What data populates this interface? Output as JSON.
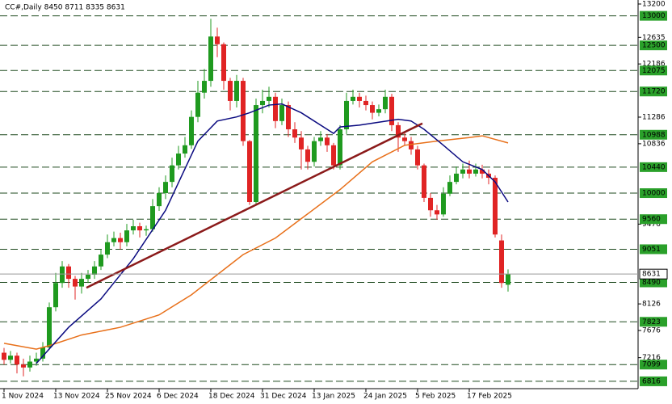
{
  "chart_data": {
    "type": "candlestick",
    "title": "CC#,Daily  8450 8711 8335 8631",
    "categories": [
      "1 Nov 2024",
      null,
      null,
      null,
      null,
      null,
      null,
      null,
      "13 Nov 2024",
      null,
      null,
      null,
      null,
      null,
      null,
      null,
      "25 Nov 2024",
      null,
      null,
      null,
      null,
      null,
      null,
      null,
      "6 Dec 2024",
      null,
      null,
      null,
      null,
      null,
      null,
      null,
      "18 Dec 2024",
      null,
      null,
      null,
      null,
      null,
      null,
      null,
      "31 Dec 2024",
      null,
      null,
      null,
      null,
      null,
      null,
      null,
      "13 Jan 2025",
      null,
      null,
      null,
      null,
      null,
      null,
      null,
      "24 Jan 2025",
      null,
      null,
      null,
      null,
      null,
      null,
      null,
      "5 Feb 2025",
      null,
      null,
      null,
      null,
      null,
      null,
      null,
      "17 Feb 2025",
      null,
      null,
      null,
      null,
      null,
      null
    ],
    "open": [
      7300,
      7180,
      7250,
      7100,
      7050,
      7150,
      7200,
      7390,
      8070,
      8480,
      8760,
      8550,
      8420,
      8550,
      8620,
      8760,
      8960,
      9170,
      9240,
      9170,
      9370,
      9440,
      9370,
      9390,
      9780,
      10000,
      10190,
      10470,
      10670,
      10810,
      11290,
      11700,
      11900,
      12650,
      12520,
      11900,
      11560,
      11900,
      10880,
      9850,
      11490,
      11560,
      11630,
      11220,
      11490,
      11080,
      10940,
      10740,
      10530,
      10880,
      10940,
      10810,
      10470,
      11080,
      11560,
      11630,
      11560,
      11490,
      11360,
      11420,
      11630,
      11150,
      10940,
      10880,
      10740,
      10470,
      9920,
      9710,
      9640,
      9990,
      10190,
      10330,
      10400,
      10330,
      10400,
      10330,
      10260,
      9200,
      8450
    ],
    "high": [
      7380,
      7330,
      7300,
      7200,
      7250,
      7300,
      7480,
      8150,
      8650,
      8850,
      8800,
      8600,
      8650,
      8700,
      8850,
      9050,
      9300,
      9350,
      9330,
      9480,
      9550,
      9500,
      9450,
      9900,
      10100,
      10300,
      10600,
      10800,
      10950,
      11400,
      11900,
      12100,
      12950,
      12800,
      12550,
      11950,
      12000,
      11950,
      10900,
      11600,
      11750,
      11800,
      11700,
      11600,
      11550,
      11200,
      11050,
      10800,
      10950,
      11050,
      11000,
      10850,
      11150,
      11700,
      11750,
      11700,
      11650,
      11550,
      11500,
      11750,
      11680,
      11200,
      11050,
      10950,
      10800,
      10500,
      10000,
      9800,
      10100,
      10300,
      10450,
      10500,
      10550,
      10500,
      10480,
      10400,
      10300,
      9300,
      8711
    ],
    "low": [
      7100,
      7120,
      6950,
      6900,
      6980,
      7080,
      7150,
      7350,
      8000,
      8400,
      8400,
      8200,
      8300,
      8480,
      8550,
      8700,
      8900,
      9100,
      9050,
      9100,
      9300,
      9250,
      9280,
      9350,
      9700,
      9900,
      10100,
      10400,
      10600,
      10750,
      11200,
      11600,
      11800,
      12300,
      11750,
      11400,
      11450,
      10800,
      9800,
      9800,
      11350,
      11450,
      11100,
      11150,
      10950,
      10850,
      10400,
      10400,
      10450,
      10800,
      10700,
      10400,
      10400,
      11000,
      11500,
      11450,
      11400,
      11250,
      11300,
      11350,
      11050,
      10700,
      10800,
      10650,
      10400,
      9850,
      9600,
      9550,
      9600,
      9950,
      10150,
      10250,
      10250,
      10280,
      10250,
      10150,
      9250,
      8400,
      8335
    ],
    "close": [
      7180,
      7250,
      7100,
      7050,
      7150,
      7200,
      7390,
      8070,
      8480,
      8760,
      8550,
      8420,
      8550,
      8620,
      8760,
      8960,
      9170,
      9240,
      9170,
      9370,
      9440,
      9370,
      9390,
      9780,
      10000,
      10190,
      10470,
      10670,
      10810,
      11290,
      11700,
      11900,
      12650,
      12520,
      11900,
      11560,
      11900,
      10880,
      9850,
      11490,
      11560,
      11630,
      11220,
      11490,
      11080,
      10940,
      10740,
      10530,
      10880,
      10940,
      10810,
      10470,
      11080,
      11560,
      11630,
      11560,
      11490,
      11360,
      11420,
      11630,
      11150,
      10940,
      10880,
      10740,
      10470,
      9920,
      9710,
      9640,
      9990,
      10190,
      10330,
      10400,
      10330,
      10400,
      10330,
      10260,
      9300,
      8480,
      8631
    ],
    "up_color": "#1f9a1f",
    "down_color": "#e02424",
    "lines": [
      {
        "color": "#e8701a",
        "x": [
          0,
          5,
          7,
          12,
          18,
          24,
          29,
          33,
          37,
          42,
          47,
          52,
          57,
          62,
          67,
          72,
          74,
          78
        ],
        "values": [
          7460,
          7360,
          7420,
          7600,
          7730,
          7940,
          8280,
          8620,
          8960,
          9240,
          9650,
          10060,
          10530,
          10810,
          10880,
          10940,
          10970,
          10850
        ]
      },
      {
        "color": "#0a0a80",
        "x": [
          5,
          10,
          15,
          20,
          25,
          30,
          33,
          36,
          38,
          41,
          43,
          46,
          50,
          51,
          52,
          55,
          58,
          61,
          63,
          65,
          68,
          71,
          74,
          76,
          78
        ],
        "values": [
          7120,
          7730,
          8210,
          8890,
          9710,
          10880,
          11220,
          11290,
          11360,
          11490,
          11510,
          11360,
          11080,
          11010,
          11120,
          11150,
          11200,
          11250,
          11220,
          11080,
          10810,
          10530,
          10400,
          10190,
          9850
        ]
      },
      {
        "color": "#8b1a1a",
        "x": [
          12.75,
          64.75
        ],
        "values": [
          8400,
          11180
        ]
      }
    ],
    "levels": [
      13000,
      12500,
      12075,
      11720,
      10988,
      10440,
      10000,
      9560,
      9051,
      8490,
      7823,
      7099,
      6816
    ],
    "level_color": "#2aa02a",
    "ylim": [
      6692,
      13268
    ],
    "yticks": [
      13200,
      12635,
      12186,
      11286,
      10836,
      9476,
      8126,
      7676,
      7216
    ]
  }
}
